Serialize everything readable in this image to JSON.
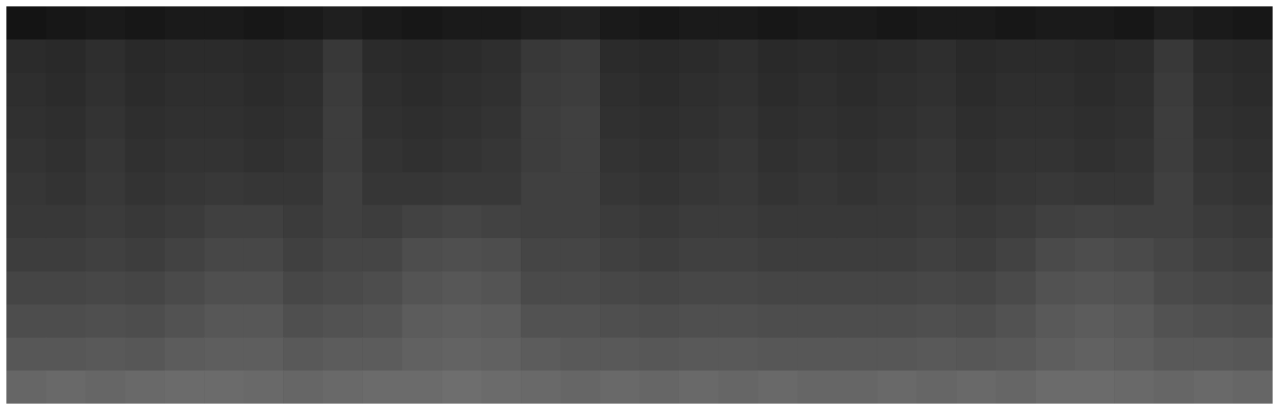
{
  "chart_data": {
    "type": "heatmap",
    "tick_labels": false,
    "cells": [
      [
        0.08,
        0.09,
        0.1,
        0.09,
        0.1,
        0.1,
        0.09,
        0.1,
        0.12,
        0.1,
        0.09,
        0.1,
        0.1,
        0.12,
        0.13,
        0.1,
        0.09,
        0.1,
        0.1,
        0.09,
        0.1,
        0.1,
        0.09,
        0.1,
        0.1,
        0.09,
        0.1,
        0.1,
        0.09,
        0.12,
        0.1,
        0.09
      ],
      [
        0.17,
        0.16,
        0.18,
        0.16,
        0.17,
        0.17,
        0.16,
        0.17,
        0.22,
        0.17,
        0.16,
        0.17,
        0.18,
        0.22,
        0.23,
        0.17,
        0.16,
        0.17,
        0.18,
        0.16,
        0.17,
        0.16,
        0.17,
        0.18,
        0.16,
        0.17,
        0.17,
        0.16,
        0.17,
        0.22,
        0.17,
        0.16
      ],
      [
        0.18,
        0.17,
        0.19,
        0.17,
        0.18,
        0.18,
        0.17,
        0.18,
        0.23,
        0.18,
        0.17,
        0.18,
        0.19,
        0.23,
        0.24,
        0.18,
        0.17,
        0.18,
        0.19,
        0.17,
        0.18,
        0.17,
        0.18,
        0.19,
        0.17,
        0.18,
        0.18,
        0.17,
        0.18,
        0.23,
        0.18,
        0.17
      ],
      [
        0.19,
        0.18,
        0.2,
        0.18,
        0.19,
        0.19,
        0.18,
        0.19,
        0.24,
        0.19,
        0.18,
        0.19,
        0.2,
        0.24,
        0.25,
        0.19,
        0.18,
        0.19,
        0.2,
        0.18,
        0.19,
        0.18,
        0.19,
        0.2,
        0.18,
        0.19,
        0.19,
        0.18,
        0.19,
        0.24,
        0.19,
        0.18
      ],
      [
        0.2,
        0.19,
        0.21,
        0.19,
        0.2,
        0.2,
        0.19,
        0.2,
        0.24,
        0.2,
        0.19,
        0.2,
        0.21,
        0.24,
        0.25,
        0.2,
        0.19,
        0.2,
        0.21,
        0.19,
        0.2,
        0.19,
        0.2,
        0.21,
        0.19,
        0.2,
        0.2,
        0.19,
        0.2,
        0.24,
        0.2,
        0.19
      ],
      [
        0.21,
        0.2,
        0.22,
        0.2,
        0.21,
        0.22,
        0.21,
        0.21,
        0.25,
        0.21,
        0.21,
        0.22,
        0.22,
        0.25,
        0.25,
        0.21,
        0.2,
        0.21,
        0.22,
        0.2,
        0.21,
        0.2,
        0.21,
        0.22,
        0.2,
        0.21,
        0.22,
        0.21,
        0.21,
        0.25,
        0.21,
        0.2
      ],
      [
        0.22,
        0.22,
        0.23,
        0.22,
        0.23,
        0.25,
        0.25,
        0.23,
        0.25,
        0.24,
        0.26,
        0.27,
        0.26,
        0.25,
        0.25,
        0.23,
        0.22,
        0.23,
        0.23,
        0.22,
        0.22,
        0.22,
        0.22,
        0.23,
        0.22,
        0.23,
        0.25,
        0.26,
        0.25,
        0.25,
        0.23,
        0.22
      ],
      [
        0.24,
        0.24,
        0.25,
        0.24,
        0.26,
        0.28,
        0.28,
        0.25,
        0.27,
        0.27,
        0.3,
        0.31,
        0.3,
        0.27,
        0.27,
        0.25,
        0.24,
        0.25,
        0.25,
        0.24,
        0.24,
        0.24,
        0.24,
        0.25,
        0.24,
        0.26,
        0.29,
        0.3,
        0.29,
        0.27,
        0.25,
        0.24
      ],
      [
        0.27,
        0.27,
        0.28,
        0.27,
        0.29,
        0.31,
        0.31,
        0.28,
        0.29,
        0.3,
        0.33,
        0.34,
        0.33,
        0.29,
        0.29,
        0.28,
        0.27,
        0.28,
        0.28,
        0.27,
        0.27,
        0.27,
        0.27,
        0.28,
        0.27,
        0.29,
        0.32,
        0.33,
        0.32,
        0.29,
        0.28,
        0.27
      ],
      [
        0.3,
        0.3,
        0.31,
        0.3,
        0.32,
        0.34,
        0.34,
        0.31,
        0.32,
        0.33,
        0.36,
        0.37,
        0.36,
        0.32,
        0.32,
        0.31,
        0.3,
        0.31,
        0.31,
        0.3,
        0.3,
        0.3,
        0.3,
        0.31,
        0.3,
        0.32,
        0.35,
        0.36,
        0.35,
        0.32,
        0.31,
        0.3
      ],
      [
        0.34,
        0.34,
        0.35,
        0.34,
        0.36,
        0.37,
        0.37,
        0.35,
        0.36,
        0.36,
        0.38,
        0.39,
        0.38,
        0.36,
        0.35,
        0.35,
        0.34,
        0.35,
        0.35,
        0.34,
        0.34,
        0.34,
        0.34,
        0.35,
        0.34,
        0.35,
        0.37,
        0.38,
        0.37,
        0.35,
        0.35,
        0.34
      ],
      [
        0.4,
        0.41,
        0.4,
        0.41,
        0.42,
        0.42,
        0.41,
        0.4,
        0.41,
        0.42,
        0.42,
        0.43,
        0.42,
        0.41,
        0.4,
        0.41,
        0.4,
        0.41,
        0.4,
        0.41,
        0.4,
        0.4,
        0.41,
        0.4,
        0.41,
        0.4,
        0.42,
        0.42,
        0.41,
        0.4,
        0.41,
        0.4
      ]
    ]
  }
}
